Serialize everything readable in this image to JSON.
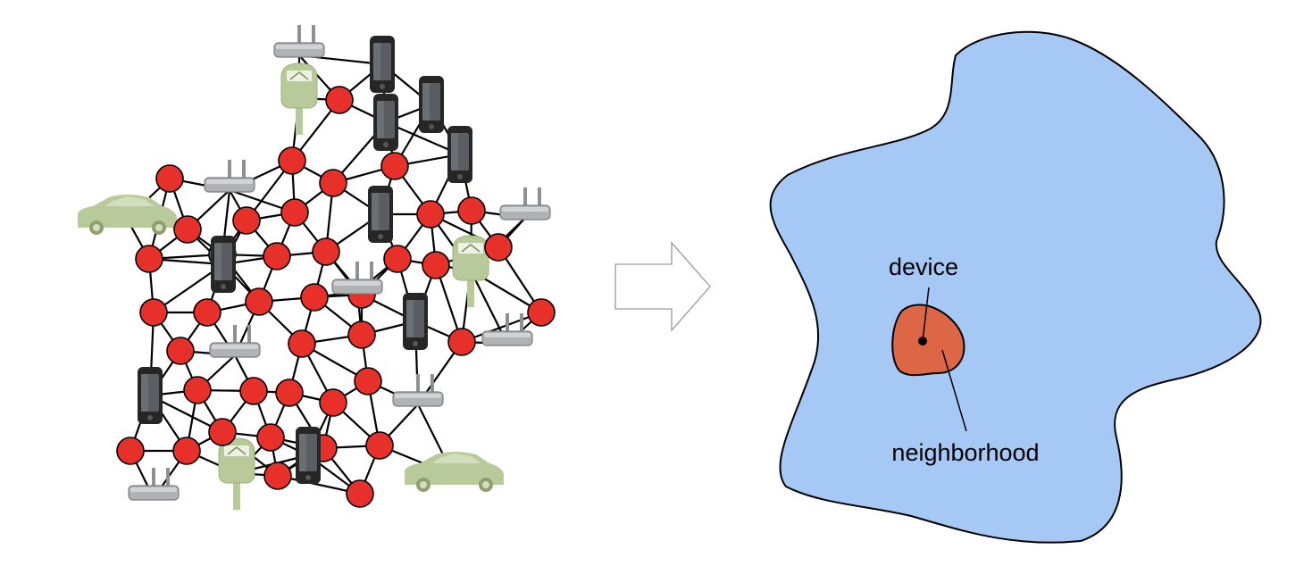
{
  "colors": {
    "node_fill": "#e8302a",
    "edge": "#000000",
    "region_fill": "#a6c8f5",
    "neighborhood_fill": "#dc6646",
    "router": "#a9aaac",
    "phone": "#2b2b2b",
    "meter_car": "#b8c99a"
  },
  "icons": [
    "router-icon",
    "smartphone-icon",
    "parking-meter-icon",
    "car-icon",
    "arrow-icon"
  ],
  "labels": {
    "device": "device",
    "neighborhood": "neighborhood"
  }
}
